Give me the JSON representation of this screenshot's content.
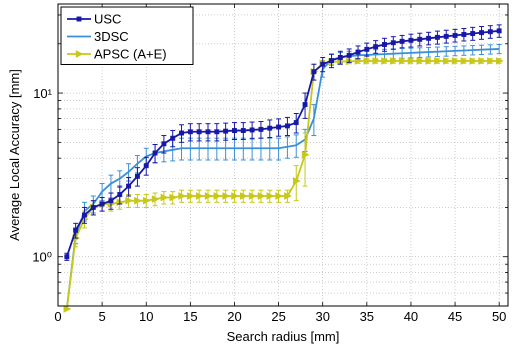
{
  "chart_data": {
    "type": "line",
    "xlabel": "Search radius [mm]",
    "ylabel": "Average Local Accuracy [mm]",
    "xlim": [
      0,
      51
    ],
    "ylim": [
      0.5,
      35
    ],
    "yscale": "log",
    "xticks": [
      0,
      5,
      10,
      15,
      20,
      25,
      30,
      35,
      40,
      45,
      50
    ],
    "yticks": [
      1,
      10
    ],
    "ytick_labels": [
      "10⁰",
      "10¹"
    ],
    "grid": true,
    "legend_position": "top-left",
    "x": [
      1,
      2,
      3,
      4,
      5,
      6,
      7,
      8,
      9,
      10,
      11,
      12,
      13,
      14,
      15,
      16,
      17,
      18,
      19,
      20,
      21,
      22,
      23,
      24,
      25,
      26,
      27,
      28,
      29,
      30,
      31,
      32,
      33,
      34,
      35,
      36,
      37,
      38,
      39,
      40,
      41,
      42,
      43,
      44,
      45,
      46,
      47,
      48,
      49,
      50
    ],
    "series": [
      {
        "name": "USC",
        "color": "#1818a8",
        "marker": "square",
        "values": [
          1.0,
          1.45,
          1.8,
          2.0,
          2.1,
          2.2,
          2.4,
          2.7,
          3.1,
          3.6,
          4.3,
          4.9,
          5.3,
          5.7,
          5.8,
          5.8,
          5.8,
          5.8,
          5.85,
          5.9,
          5.9,
          5.95,
          6.0,
          6.1,
          6.2,
          6.3,
          6.6,
          8.5,
          13.5,
          15.0,
          15.8,
          16.5,
          17.0,
          17.8,
          18.5,
          19.2,
          19.8,
          20.3,
          20.7,
          21.0,
          21.3,
          21.6,
          21.9,
          22.2,
          22.5,
          22.8,
          23.1,
          23.4,
          23.7,
          24.0
        ],
        "errors": [
          0.05,
          0.15,
          0.2,
          0.2,
          0.2,
          0.25,
          0.3,
          0.35,
          0.4,
          0.45,
          0.55,
          0.6,
          0.6,
          0.7,
          0.7,
          0.7,
          0.7,
          0.7,
          0.7,
          0.7,
          0.7,
          0.7,
          0.7,
          0.75,
          0.75,
          0.8,
          0.9,
          1.5,
          1.5,
          1.5,
          1.5,
          1.5,
          1.6,
          1.6,
          1.7,
          1.7,
          1.8,
          1.8,
          1.8,
          1.9,
          1.9,
          1.9,
          2.0,
          2.0,
          2.0,
          2.0,
          2.1,
          2.1,
          2.1,
          2.1
        ]
      },
      {
        "name": "3DSC",
        "color": "#3a90d8",
        "marker": "none",
        "values": [
          0.48,
          1.35,
          1.9,
          2.1,
          2.5,
          2.8,
          3.0,
          3.3,
          3.7,
          4.1,
          4.3,
          4.4,
          4.5,
          4.6,
          4.6,
          4.6,
          4.6,
          4.6,
          4.6,
          4.6,
          4.6,
          4.6,
          4.6,
          4.6,
          4.6,
          4.7,
          4.8,
          5.2,
          7.0,
          14.0,
          16.0,
          16.5,
          16.8,
          17.0,
          17.1,
          17.2,
          17.3,
          17.4,
          17.5,
          17.6,
          17.7,
          17.8,
          17.9,
          18.0,
          18.1,
          18.2,
          18.3,
          18.4,
          18.5,
          18.6
        ],
        "errors": [
          0.02,
          0.15,
          0.25,
          0.25,
          0.3,
          0.35,
          0.35,
          0.4,
          0.45,
          0.5,
          0.55,
          0.6,
          0.65,
          0.7,
          0.7,
          0.7,
          0.7,
          0.7,
          0.7,
          0.7,
          0.7,
          0.7,
          0.7,
          0.7,
          0.7,
          0.7,
          0.75,
          0.8,
          1.5,
          1.5,
          1.2,
          1.2,
          1.2,
          1.2,
          1.2,
          1.2,
          1.2,
          1.2,
          1.2,
          1.2,
          1.2,
          1.2,
          1.2,
          1.2,
          1.2,
          1.2,
          1.2,
          1.2,
          1.2,
          1.2
        ]
      },
      {
        "name": "APSC (A+E)",
        "color": "#c8c818",
        "marker": "triangle-right",
        "values": [
          0.48,
          1.3,
          1.7,
          2.0,
          2.1,
          2.1,
          2.15,
          2.2,
          2.2,
          2.2,
          2.25,
          2.3,
          2.3,
          2.35,
          2.35,
          2.35,
          2.35,
          2.35,
          2.35,
          2.35,
          2.35,
          2.35,
          2.35,
          2.35,
          2.35,
          2.35,
          2.9,
          4.2,
          13.5,
          15.2,
          15.5,
          15.6,
          15.6,
          15.7,
          15.7,
          15.7,
          15.7,
          15.7,
          15.7,
          15.7,
          15.7,
          15.7,
          15.7,
          15.7,
          15.7,
          15.7,
          15.7,
          15.7,
          15.7,
          15.7
        ],
        "errors": [
          0.02,
          0.15,
          0.2,
          0.2,
          0.2,
          0.2,
          0.2,
          0.2,
          0.2,
          0.2,
          0.2,
          0.2,
          0.2,
          0.2,
          0.2,
          0.2,
          0.2,
          0.2,
          0.2,
          0.2,
          0.2,
          0.2,
          0.2,
          0.2,
          0.2,
          0.2,
          0.7,
          1.5,
          1.5,
          0.6,
          0.5,
          0.5,
          0.5,
          0.5,
          0.5,
          0.5,
          0.5,
          0.5,
          0.5,
          0.5,
          0.5,
          0.5,
          0.5,
          0.5,
          0.5,
          0.5,
          0.5,
          0.5,
          0.5,
          0.5
        ]
      }
    ]
  }
}
